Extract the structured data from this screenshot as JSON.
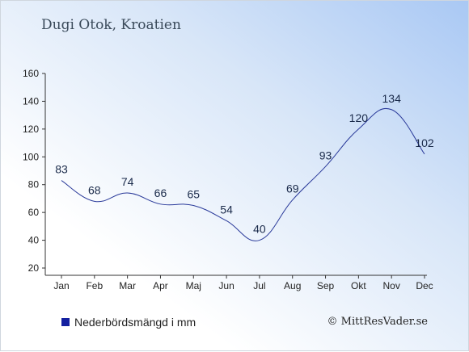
{
  "header": {
    "title": "Dugi Otok, Kroatien"
  },
  "legend": {
    "label": "Nederbördsmängd i mm",
    "color": "#1420a0"
  },
  "credit": {
    "text": "© MittResVader.se"
  },
  "chart_data": {
    "type": "line",
    "title": "Dugi Otok, Kroatien",
    "xlabel": "",
    "ylabel": "",
    "categories": [
      "Jan",
      "Feb",
      "Mar",
      "Apr",
      "Maj",
      "Jun",
      "Jul",
      "Aug",
      "Sep",
      "Okt",
      "Nov",
      "Dec"
    ],
    "series": [
      {
        "name": "Nederbördsmängd i mm",
        "values": [
          83,
          68,
          74,
          66,
          65,
          54,
          40,
          69,
          93,
          120,
          134,
          102
        ],
        "color": "#2a3a9a"
      }
    ],
    "ylim": [
      20,
      160
    ],
    "yticks": [
      20,
      40,
      60,
      80,
      100,
      120,
      140,
      160
    ],
    "grid": false,
    "legend_position": "bottom-left"
  }
}
